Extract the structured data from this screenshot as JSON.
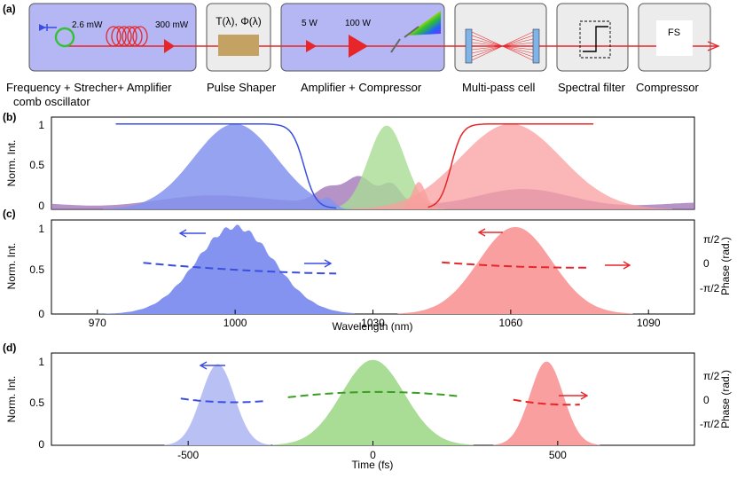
{
  "panel_labels": {
    "a": "(a)",
    "b": "(b)",
    "c": "(c)",
    "d": "(d)"
  },
  "setup": {
    "oscillator_power": "2.6 mW",
    "stretcher_power": "300 mW",
    "shaper_symbol": "T(λ), Φ(λ)",
    "amp_power_in": "5 W",
    "amp_power_out": "100 W",
    "fs_label": "FS",
    "stage_labels": [
      "Frequency + Strecher+ Amplifier",
      "comb oscillator",
      "Pulse Shaper",
      "Amplifier + Compressor",
      "Multi-pass cell",
      "Spectral filter",
      "Compressor"
    ]
  },
  "colors": {
    "blue": "#3a4ee0",
    "blue_fill": "#8493ef",
    "red": "#e8262a",
    "red_fill": "#fa9f9f",
    "green": "#3a9e22",
    "green_fill": "#a9dc95",
    "purple_fill": "#9d6fb4",
    "box_blue": "#b4b7f4",
    "box_gray": "#ececec",
    "shaper": "#c4a263"
  },
  "chart_data": [
    {
      "id": "b",
      "type": "area",
      "xlim": [
        960,
        1100
      ],
      "ylim": [
        0,
        1.08
      ],
      "ylabel": "Norm. Int.",
      "yticks": [
        "0",
        "0.5",
        "1"
      ],
      "series": [
        {
          "name": "blue band",
          "center": 1000,
          "width": 9,
          "amp": 1.0
        },
        {
          "name": "green band",
          "center": 1033,
          "width": 4,
          "amp": 0.98
        },
        {
          "name": "red band",
          "center": 1060,
          "width": 11,
          "amp": 1.0
        },
        {
          "name": "purple spectrum",
          "center": 1030,
          "width": 45,
          "amp": 0.35
        },
        {
          "name": "blue filter edge",
          "x": [
            974,
            1018
          ],
          "y": [
            1.0,
            0.01
          ]
        },
        {
          "name": "red filter edge",
          "x": [
            1044,
            1078
          ],
          "y": [
            0.01,
            1.0
          ]
        }
      ]
    },
    {
      "id": "c",
      "type": "area",
      "xlim": [
        960,
        1100
      ],
      "ylim": [
        0,
        1.08
      ],
      "xlabel": "Wavelength (nm)",
      "ylabel": "Norm. Int.",
      "y2label": "Phase (rad.)",
      "xticks": [
        "970",
        "1000",
        "1030",
        "1060",
        "1090"
      ],
      "yticks": [
        "0",
        "0.5",
        "1"
      ],
      "y2ticks": [
        "π/2",
        "0",
        "-π/2"
      ],
      "series": [
        {
          "name": "blue spectrum",
          "center": 1000,
          "width": 9,
          "amp": 1.0
        },
        {
          "name": "red spectrum",
          "center": 1061,
          "width": 8,
          "amp": 1.0
        },
        {
          "name": "blue phase",
          "x": [
            980,
            1022
          ],
          "y": [
            0.08,
            -0.25
          ]
        },
        {
          "name": "red phase",
          "x": [
            1045,
            1077
          ],
          "y": [
            0.08,
            -0.12
          ]
        }
      ]
    },
    {
      "id": "d",
      "type": "area",
      "xlim": [
        -870,
        870
      ],
      "ylim": [
        0,
        1.08
      ],
      "xlabel": "Time (fs)",
      "ylabel": "Norm. Int.",
      "y2label": "Phase (rad.)",
      "xticks": [
        "-500",
        "0",
        "500"
      ],
      "yticks": [
        "0",
        "0.5",
        "1"
      ],
      "y2ticks": [
        "π/2",
        "0",
        "-π/2"
      ],
      "series": [
        {
          "name": "blue pulse",
          "center": -420,
          "width": 45,
          "amp": 0.95
        },
        {
          "name": "green pulse",
          "center": 0,
          "width": 85,
          "amp": 1.0
        },
        {
          "name": "red pulse",
          "center": 470,
          "width": 45,
          "amp": 0.98
        },
        {
          "name": "blue phase",
          "x": [
            -520,
            -290
          ],
          "y": [
            0.05,
            -0.05
          ]
        },
        {
          "name": "green phase",
          "x": [
            -230,
            230
          ],
          "y": [
            0.15,
            0.15
          ]
        },
        {
          "name": "red phase",
          "x": [
            380,
            560
          ],
          "y": [
            0.05,
            -0.05
          ]
        }
      ]
    }
  ]
}
